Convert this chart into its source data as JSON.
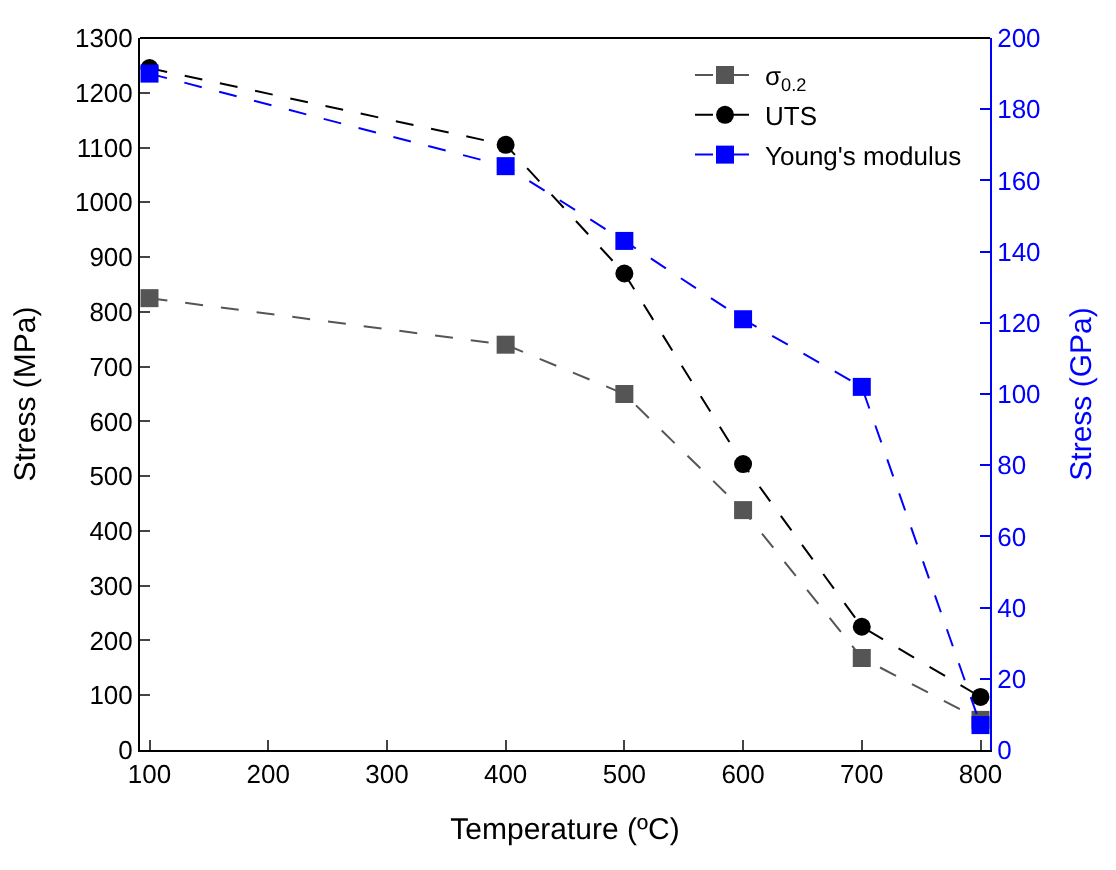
{
  "chart_data": {
    "type": "line",
    "xlabel": "Temperature (ºC)",
    "ylabel": "Stress (MPa)",
    "y2label": "Stress (GPa)",
    "x": [
      100,
      400,
      500,
      600,
      700,
      800
    ],
    "series": [
      {
        "name": "σ$_{0.2}$",
        "color": "#555555",
        "marker": "square",
        "line_style": "dashed",
        "values": [
          825,
          740,
          650,
          438,
          168,
          55
        ]
      },
      {
        "name": "UTS",
        "color": "#000000",
        "marker": "circle",
        "line_style": "dashed",
        "values": [
          1245,
          1105,
          870,
          522,
          225,
          97
        ]
      },
      {
        "name": "Young's modulus",
        "color": "#0000ff",
        "marker": "square",
        "line_style": "dashed",
        "axis": "y2",
        "values": [
          190,
          164,
          143,
          121,
          102,
          7
        ]
      }
    ],
    "xlim": [
      92,
      808
    ],
    "xticks": [
      100,
      200,
      300,
      400,
      500,
      600,
      700,
      800
    ],
    "ylim": [
      0,
      1300
    ],
    "yticks": [
      0,
      100,
      200,
      300,
      400,
      500,
      600,
      700,
      800,
      900,
      1000,
      1100,
      1200,
      1300
    ],
    "y2lim": [
      0,
      200
    ],
    "y2ticks": [
      0,
      20,
      40,
      60,
      80,
      100,
      120,
      140,
      160,
      180,
      200
    ],
    "legend": "top right"
  }
}
